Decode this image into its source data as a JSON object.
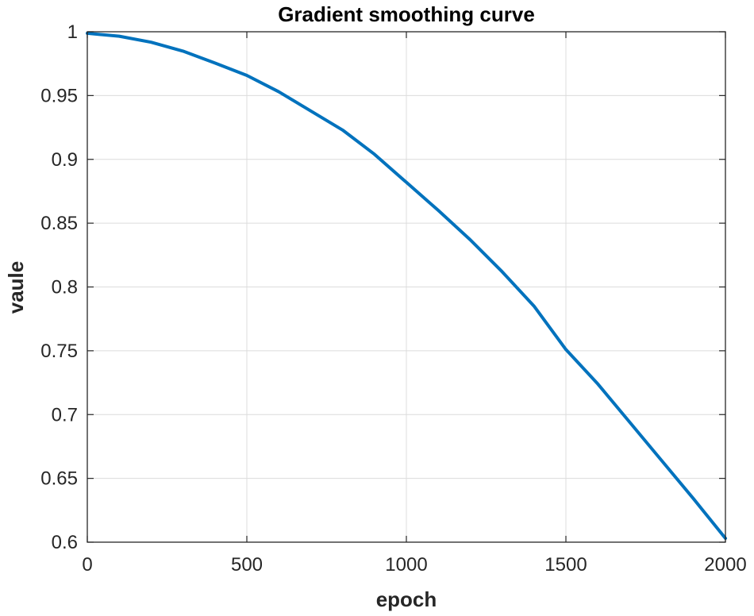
{
  "chart_data": {
    "type": "line",
    "title": "Gradient smoothing curve",
    "xlabel": "epoch",
    "ylabel": "vaule",
    "xlim": [
      0,
      2000
    ],
    "ylim": [
      0.6,
      1
    ],
    "xticks": [
      0,
      500,
      1000,
      1500,
      2000
    ],
    "yticks": [
      0.6,
      0.65,
      0.7,
      0.75,
      0.8,
      0.85,
      0.9,
      0.95,
      1
    ],
    "xtick_labels": [
      "0",
      "500",
      "1000",
      "1500",
      "2000"
    ],
    "ytick_labels": [
      "0.6",
      "0.65",
      "0.7",
      "0.75",
      "0.8",
      "0.85",
      "0.9",
      "0.95",
      "1"
    ],
    "grid": true,
    "series": [
      {
        "color": "#0072BD",
        "x": [
          0,
          100,
          200,
          300,
          400,
          500,
          600,
          700,
          800,
          900,
          1000,
          1100,
          1200,
          1300,
          1400,
          1500,
          1600,
          1700,
          1800,
          1900,
          2000
        ],
        "y": [
          0.9988,
          0.9965,
          0.9918,
          0.9848,
          0.9755,
          0.9658,
          0.953,
          0.938,
          0.923,
          0.904,
          0.882,
          0.86,
          0.837,
          0.812,
          0.785,
          0.751,
          0.724,
          0.694,
          0.664,
          0.634,
          0.603
        ]
      }
    ]
  }
}
